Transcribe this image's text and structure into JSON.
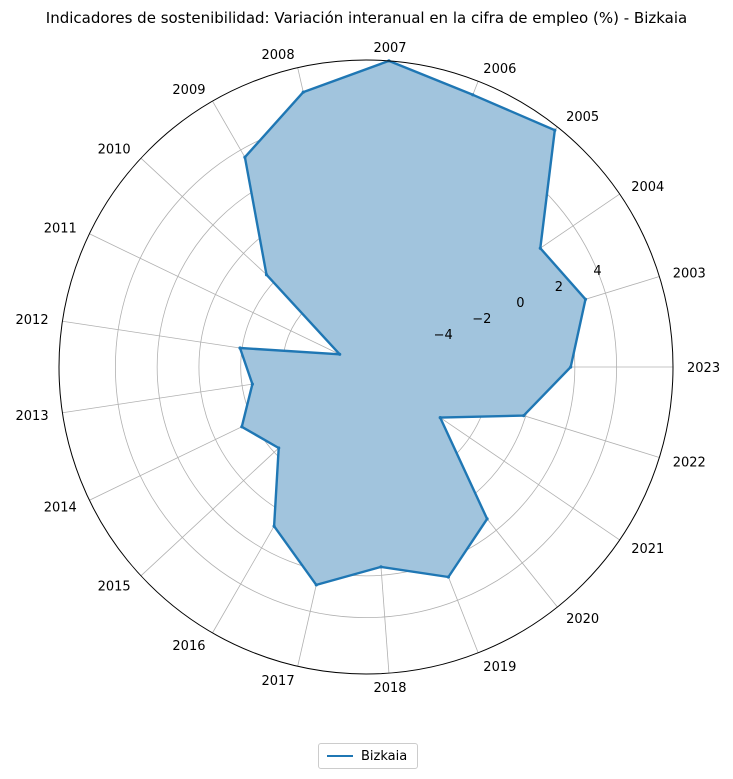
{
  "chart_data": {
    "type": "radar",
    "title": "Indicadores de sostenibilidad: Variación interanual en la cifra de empleo (%) - Bizkaia",
    "categories": [
      "2023",
      "2003",
      "2004",
      "2005",
      "2006",
      "2007",
      "2008",
      "2009",
      "2010",
      "2011",
      "2012",
      "2013",
      "2014",
      "2015",
      "2016",
      "2017",
      "2018",
      "2019",
      "2020",
      "2021",
      "2022"
    ],
    "series": [
      {
        "name": "Bizkaia",
        "color": "#1f77b4",
        "fill": "#a1c4dd",
        "values": [
          1.8,
          3.0,
          2.1,
          6.5,
          6.0,
          6.7,
          5.5,
          3.6,
          -1.5,
          -6.6,
          -1.9,
          -2.5,
          -1.4,
          -2.3,
          0.8,
          2.7,
          1.6,
          2.8,
          1.3,
          -3.7,
          -0.1
        ]
      }
    ],
    "rlim": [
      -8,
      6.7
    ],
    "rticks": [
      -4,
      -2,
      0,
      2,
      4
    ],
    "rtick_labels": [
      "−4",
      "−2",
      "0",
      "2",
      "4"
    ],
    "grid": true,
    "legend_position": "bottom-center"
  }
}
